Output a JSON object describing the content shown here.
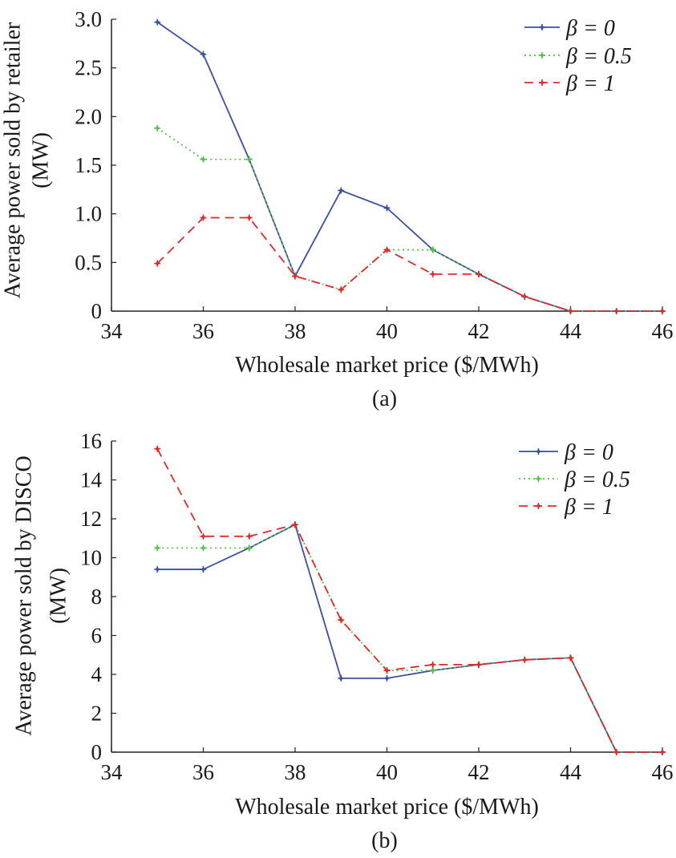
{
  "figure": {
    "panels": [
      {
        "label": "(a)",
        "chart_data": {
          "type": "line",
          "title": "",
          "xlabel": "Wholesale market price ($/MWh)",
          "ylabel_lines": [
            "Average power sold by retailer",
            "(MW)"
          ],
          "xlim": [
            34,
            46
          ],
          "ylim": [
            0,
            3
          ],
          "x_ticks": [
            34,
            36,
            38,
            40,
            42,
            44,
            46
          ],
          "y_ticks": [
            0,
            0.5,
            1.0,
            1.5,
            2.0,
            2.5,
            3.0
          ],
          "y_tick_labels": [
            "0",
            "0.5",
            "1.0",
            "1.5",
            "2.0",
            "2.5",
            "3.0"
          ],
          "grid": false,
          "legend_position": "top-right",
          "x": [
            35,
            36,
            37,
            38,
            39,
            40,
            41,
            42,
            43,
            44,
            45,
            46
          ],
          "series": [
            {
              "name": "β = 0",
              "color": "#3a50a0",
              "dash": "solid",
              "values": [
                2.97,
                2.64,
                1.56,
                0.36,
                1.24,
                1.06,
                0.63,
                0.38,
                0.15,
                0,
                0,
                0
              ]
            },
            {
              "name": "β = 0.5",
              "color": "#55c24a",
              "dash": "dotted",
              "values": [
                1.88,
                1.56,
                1.56,
                0.36,
                0.22,
                0.63,
                0.63,
                0.38,
                0.15,
                0,
                0,
                0
              ]
            },
            {
              "name": "β = 1",
              "color": "#e02a2a",
              "dash": "dashed",
              "values": [
                0.49,
                0.96,
                0.96,
                0.36,
                0.22,
                0.63,
                0.38,
                0.38,
                0.15,
                0,
                0,
                0
              ]
            }
          ]
        }
      },
      {
        "label": "(b)",
        "chart_data": {
          "type": "line",
          "title": "",
          "xlabel": "Wholesale market price ($/MWh)",
          "ylabel_lines": [
            "Average power sold by DISCO",
            "(MW)"
          ],
          "xlim": [
            34,
            46
          ],
          "ylim": [
            0,
            16
          ],
          "x_ticks": [
            34,
            36,
            38,
            40,
            42,
            44,
            46
          ],
          "y_ticks": [
            0,
            2,
            4,
            6,
            8,
            10,
            12,
            14,
            16
          ],
          "y_tick_labels": [
            "0",
            "2",
            "4",
            "6",
            "8",
            "10",
            "12",
            "14",
            "16"
          ],
          "grid": false,
          "legend_position": "top-right",
          "x": [
            35,
            36,
            37,
            38,
            39,
            40,
            41,
            42,
            43,
            44,
            45,
            46
          ],
          "series": [
            {
              "name": "β = 0",
              "color": "#3a50a0",
              "dash": "solid",
              "values": [
                9.4,
                9.4,
                10.5,
                11.7,
                3.8,
                3.8,
                4.2,
                4.5,
                4.75,
                4.85,
                0,
                0
              ]
            },
            {
              "name": "β = 0.5",
              "color": "#55c24a",
              "dash": "dotted",
              "values": [
                10.5,
                10.5,
                10.5,
                11.7,
                6.8,
                4.2,
                4.2,
                4.5,
                4.75,
                4.85,
                0,
                0
              ]
            },
            {
              "name": "β = 1",
              "color": "#e02a2a",
              "dash": "dashed",
              "values": [
                15.6,
                11.1,
                11.1,
                11.7,
                6.8,
                4.2,
                4.5,
                4.5,
                4.75,
                4.85,
                0,
                0
              ]
            }
          ]
        }
      }
    ]
  }
}
